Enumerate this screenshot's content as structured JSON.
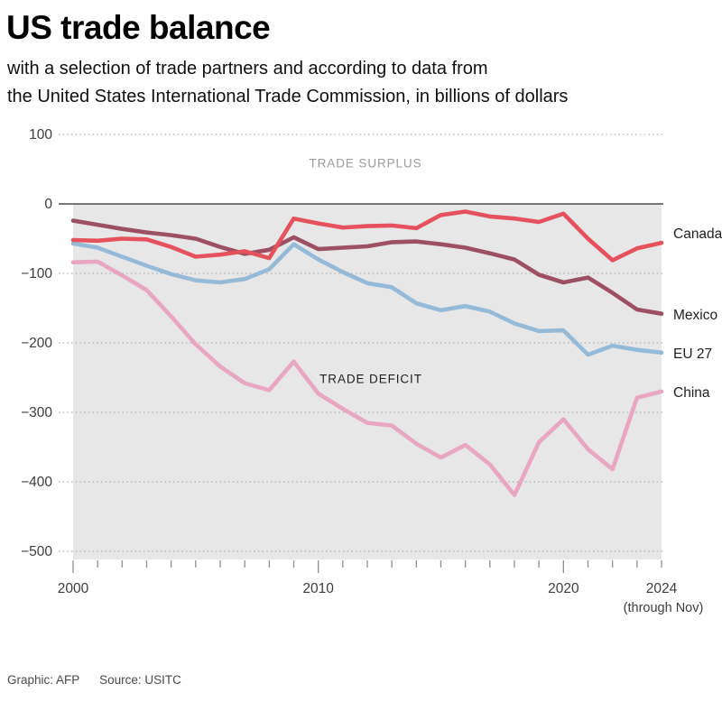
{
  "header": {
    "title": "US trade balance",
    "subtitle_lines": [
      "with a selection of trade partners and according to data from",
      "the United States International Trade Commission, in billions of dollars"
    ]
  },
  "chart_data": {
    "type": "line",
    "title": "US trade balance",
    "unit": "billions of dollars",
    "x": [
      2000,
      2001,
      2002,
      2003,
      2004,
      2005,
      2006,
      2007,
      2008,
      2009,
      2010,
      2011,
      2012,
      2013,
      2014,
      2015,
      2016,
      2017,
      2018,
      2019,
      2020,
      2021,
      2022,
      2023,
      2024
    ],
    "series": [
      {
        "name": "Canada",
        "color": "#e5515c",
        "values": [
          -52,
          -53,
          -50,
          -51,
          -62,
          -76,
          -73,
          -68,
          -78,
          -21,
          -28,
          -34,
          -32,
          -31,
          -35,
          -16,
          -11,
          -18,
          -21,
          -26,
          -14,
          -50,
          -81,
          -64,
          -56
        ]
      },
      {
        "name": "Mexico",
        "color": "#9d4f63",
        "values": [
          -24,
          -30,
          -36,
          -41,
          -45,
          -50,
          -62,
          -72,
          -66,
          -48,
          -65,
          -63,
          -61,
          -55,
          -54,
          -58,
          -63,
          -71,
          -80,
          -102,
          -113,
          -106,
          -128,
          -152,
          -158
        ]
      },
      {
        "name": "EU 27",
        "color": "#95bad8",
        "values": [
          -57,
          -63,
          -76,
          -89,
          -101,
          -110,
          -113,
          -108,
          -94,
          -58,
          -80,
          -98,
          -114,
          -120,
          -143,
          -153,
          -147,
          -155,
          -172,
          -183,
          -182,
          -217,
          -204,
          -210,
          -214
        ]
      },
      {
        "name": "China",
        "color": "#e9a6c0",
        "values": [
          -84,
          -83,
          -103,
          -124,
          -162,
          -202,
          -234,
          -258,
          -268,
          -227,
          -273,
          -295,
          -315,
          -319,
          -345,
          -365,
          -347,
          -375,
          -419,
          -343,
          -310,
          -353,
          -382,
          -279,
          -270
        ]
      }
    ],
    "ylim": [
      -500,
      100
    ],
    "yticks": [
      100,
      0,
      -100,
      -200,
      -300,
      -400,
      -500
    ],
    "xtick_years": [
      2000,
      2010,
      2020,
      2024
    ],
    "x_note": "(through Nov)",
    "annotations": {
      "surplus": "TRADE SURPLUS",
      "deficit": "TRADE DEFICIT"
    },
    "grid": "horizontal-dotted",
    "legend_position": "right",
    "colors": {
      "plot_bg": "#e8e7e8",
      "grid_line": "#b0afb0",
      "zero_line": "#4c4c4c",
      "tick": "#8e8e8e",
      "axis_label": "#3d3d3d"
    }
  },
  "footer": {
    "credit": "Graphic: AFP",
    "source": "Source: USITC"
  }
}
